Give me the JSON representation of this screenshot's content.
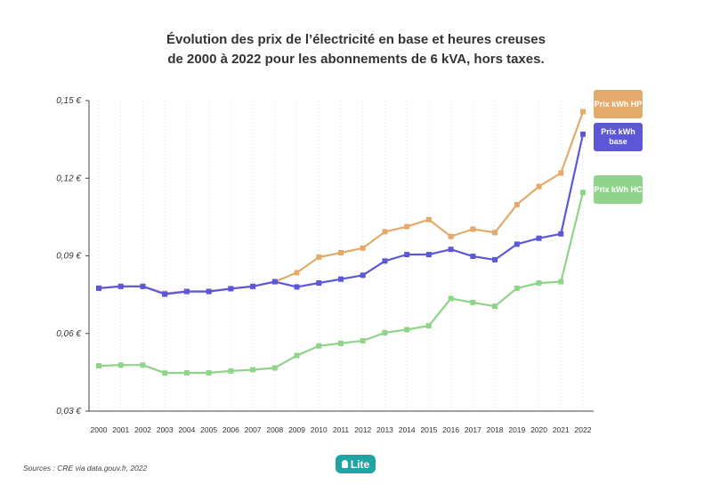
{
  "chart_data": {
    "type": "line",
    "title_line1": "Évolution des prix de l’électricité en base et heures creuses",
    "title_line2": "de 2000 à 2022 pour les abonnements de 6 kVA, hors taxes.",
    "xlabel": "",
    "ylabel": "",
    "ylim": [
      0.03,
      0.15
    ],
    "y_ticks": [
      "0,03 €",
      "0,06 €",
      "0,09 €",
      "0,12 €",
      "0,15 €"
    ],
    "y_tick_values": [
      0.03,
      0.06,
      0.09,
      0.12,
      0.15
    ],
    "grid": "vertical dotted",
    "legend_placement": "right",
    "categories": [
      "2000",
      "2001",
      "2002",
      "2003",
      "2004",
      "2005",
      "2006",
      "2007",
      "2008",
      "2009",
      "2010",
      "2011",
      "2012",
      "2013",
      "2014",
      "2015",
      "2016",
      "2017",
      "2018",
      "2019",
      "2020",
      "2021",
      "2022"
    ],
    "series": [
      {
        "name": "Prix kWh HP",
        "color": "#e4aa6c",
        "values": [
          0.0775,
          0.0782,
          0.0782,
          0.0755,
          0.0763,
          0.0763,
          0.0773,
          0.0782,
          0.08,
          0.0835,
          0.0895,
          0.0912,
          0.093,
          0.0993,
          0.1013,
          0.104,
          0.0975,
          0.1003,
          0.099,
          0.1098,
          0.1168,
          0.122,
          0.1457
        ]
      },
      {
        "name": "Prix kWh base",
        "color": "#5c57d9",
        "values": [
          0.0775,
          0.0782,
          0.0782,
          0.0752,
          0.0762,
          0.0762,
          0.0773,
          0.0782,
          0.08,
          0.078,
          0.0795,
          0.081,
          0.0825,
          0.088,
          0.0905,
          0.0905,
          0.0925,
          0.0898,
          0.0885,
          0.0945,
          0.0968,
          0.0985,
          0.137
        ]
      },
      {
        "name": "Prix kWh HC",
        "color": "#8fd48a",
        "values": [
          0.0475,
          0.0478,
          0.0478,
          0.0447,
          0.0448,
          0.0448,
          0.0455,
          0.046,
          0.0467,
          0.0515,
          0.0552,
          0.0562,
          0.0572,
          0.0603,
          0.0615,
          0.063,
          0.0735,
          0.072,
          0.0705,
          0.0775,
          0.0795,
          0.08,
          0.1145
        ]
      }
    ]
  },
  "source": "Sources : CRE via data.gouv.fr, 2022",
  "badge": "Lite"
}
